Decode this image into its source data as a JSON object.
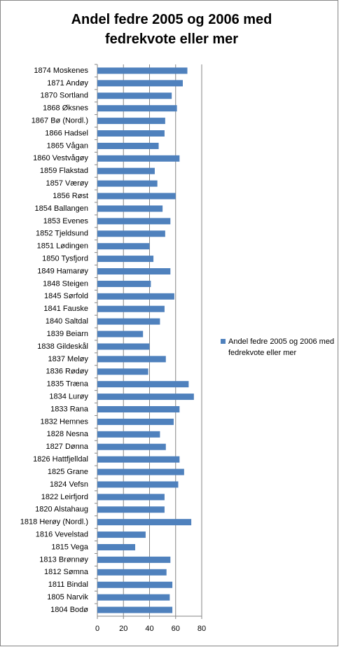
{
  "chart_data": {
    "type": "hbar",
    "title": "Andel fedre 2005 og 2006 med fedrekvote eller mer",
    "categories": [
      "1874 Moskenes",
      "1871 Andøy",
      "1870 Sortland",
      "1868 Øksnes",
      "1867 Bø (Nordl.)",
      "1866 Hadsel",
      "1865 Vågan",
      "1860 Vestvågøy",
      "1859 Flakstad",
      "1857 Værøy",
      "1856 Røst",
      "1854 Ballangen",
      "1853 Evenes",
      "1852 Tjeldsund",
      "1851 Lødingen",
      "1850 Tysfjord",
      "1849 Hamarøy",
      "1848 Steigen",
      "1845 Sørfold",
      "1841 Fauske",
      "1840 Saltdal",
      "1839 Beiarn",
      "1838 Gildeskål",
      "1837 Meløy",
      "1836 Rødøy",
      "1835 Træna",
      "1834 Lurøy",
      "1833 Rana",
      "1832 Hemnes",
      "1828 Nesna",
      "1827 Dønna",
      "1826 Hattfjelldal",
      "1825 Grane",
      "1824 Vefsn",
      "1822 Leirfjord",
      "1820 Alstahaug",
      "1818 Herøy (Nordl.)",
      "1816 Vevelstad",
      "1815 Vega",
      "1813 Brønnøy",
      "1812 Sømna",
      "1811 Bindal",
      "1805 Narvik",
      "1804 Bodø"
    ],
    "series": [
      {
        "name": "Andel fedre 2005 og 2006 med fedrekvote  eller mer",
        "color": "#4f81bd",
        "values": [
          69,
          65.5,
          57,
          61,
          52,
          51.5,
          47,
          63,
          44,
          46,
          60,
          50,
          56,
          52,
          40,
          43,
          56,
          41,
          59,
          51.5,
          48,
          35,
          40,
          52.5,
          39,
          70,
          74,
          63,
          58.5,
          48,
          52.5,
          63,
          66.5,
          62,
          51.5,
          51.5,
          72,
          37,
          29,
          56,
          53,
          57.5,
          55.5,
          57.5
        ]
      }
    ],
    "xlim": [
      0,
      80
    ],
    "xticks": [
      0,
      20,
      40,
      60,
      80
    ],
    "grid": true,
    "legend": "right"
  }
}
